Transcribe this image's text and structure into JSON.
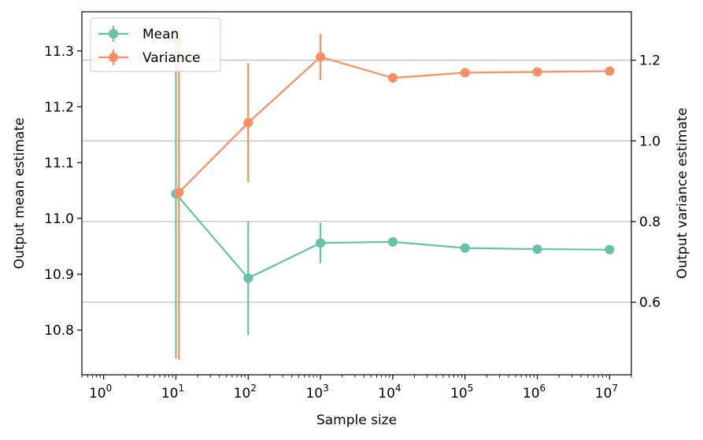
{
  "chart_data": {
    "type": "line",
    "title": "",
    "xlabel": "Sample size",
    "ylabel_left": "Output mean estimate",
    "ylabel_right": "Output variance estimate",
    "x_scale": "log",
    "xlim": [
      0.5,
      20000000
    ],
    "ylim_left": [
      10.72,
      11.37
    ],
    "ylim_right": [
      0.42,
      1.32
    ],
    "grid": "horizontal, right axis",
    "legend_position": "upper-left",
    "x_ticks": [
      {
        "base": "10",
        "exp": "0"
      },
      {
        "base": "10",
        "exp": "1"
      },
      {
        "base": "10",
        "exp": "2"
      },
      {
        "base": "10",
        "exp": "3"
      },
      {
        "base": "10",
        "exp": "4"
      },
      {
        "base": "10",
        "exp": "5"
      },
      {
        "base": "10",
        "exp": "6"
      },
      {
        "base": "10",
        "exp": "7"
      }
    ],
    "y_left_ticks": [
      "10.8",
      "10.9",
      "11.0",
      "11.1",
      "11.2",
      "11.3"
    ],
    "y_right_ticks": [
      "0.6",
      "0.8",
      "1.0",
      "1.2"
    ],
    "series": [
      {
        "name": "Mean",
        "axis": "left",
        "color": "#66c2a5",
        "x": [
          10,
          100,
          1000,
          10000,
          100000,
          1000000,
          10000000
        ],
        "y": [
          11.044,
          10.893,
          10.956,
          10.958,
          10.947,
          10.945,
          10.944
        ],
        "err": [
          0.295,
          0.102,
          0.036,
          0.005,
          0.002,
          0.001,
          0.0005
        ]
      },
      {
        "name": "Variance",
        "axis": "right",
        "color": "#fc8d62",
        "x": [
          11,
          100,
          1000,
          10000,
          100000,
          1000000,
          10000000
        ],
        "y": [
          0.872,
          1.045,
          1.208,
          1.156,
          1.169,
          1.171,
          1.173
        ],
        "err": [
          0.415,
          0.148,
          0.057,
          0.012,
          0.004,
          0.002,
          0.001
        ]
      }
    ]
  }
}
